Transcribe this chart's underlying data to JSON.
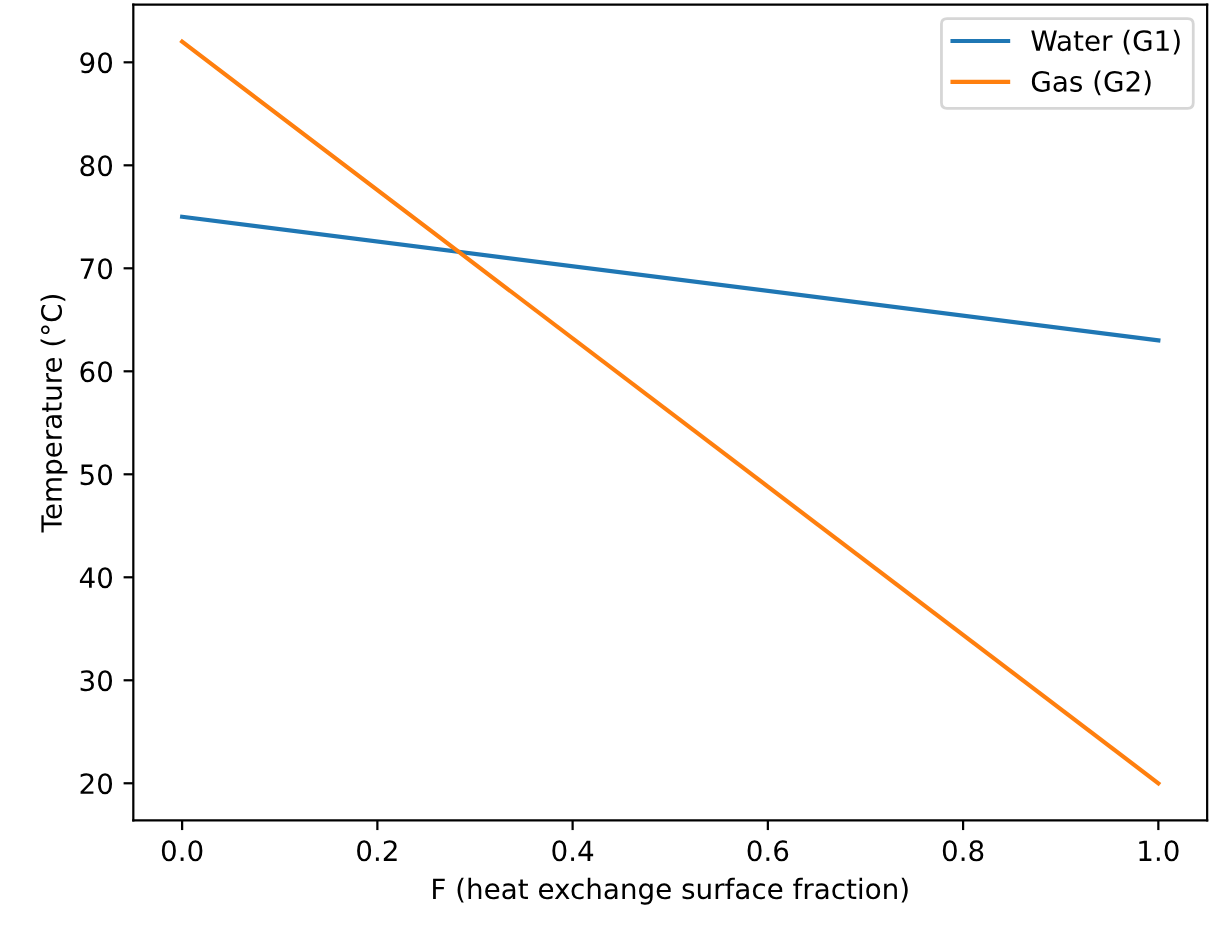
{
  "chart_data": {
    "type": "line",
    "xlabel": "F (heat exchange surface fraction)",
    "ylabel": "Temperature (°C)",
    "x": [
      0.0,
      1.0
    ],
    "series": [
      {
        "name": "Water (G1)",
        "color": "#1f77b4",
        "values": [
          75,
          63
        ]
      },
      {
        "name": "Gas (G2)",
        "color": "#ff7f0e",
        "values": [
          92,
          20
        ]
      }
    ],
    "xlim": [
      -0.05,
      1.05
    ],
    "ylim": [
      16.4,
      95.6
    ],
    "xticks": [
      {
        "value": 0.0,
        "label": "0.0"
      },
      {
        "value": 0.2,
        "label": "0.2"
      },
      {
        "value": 0.4,
        "label": "0.4"
      },
      {
        "value": 0.6,
        "label": "0.6"
      },
      {
        "value": 0.8,
        "label": "0.8"
      },
      {
        "value": 1.0,
        "label": "1.0"
      }
    ],
    "yticks": [
      20,
      30,
      40,
      50,
      60,
      70,
      80,
      90
    ],
    "legend": "top right",
    "grid": false,
    "marker": "none",
    "line_style": "solid"
  }
}
